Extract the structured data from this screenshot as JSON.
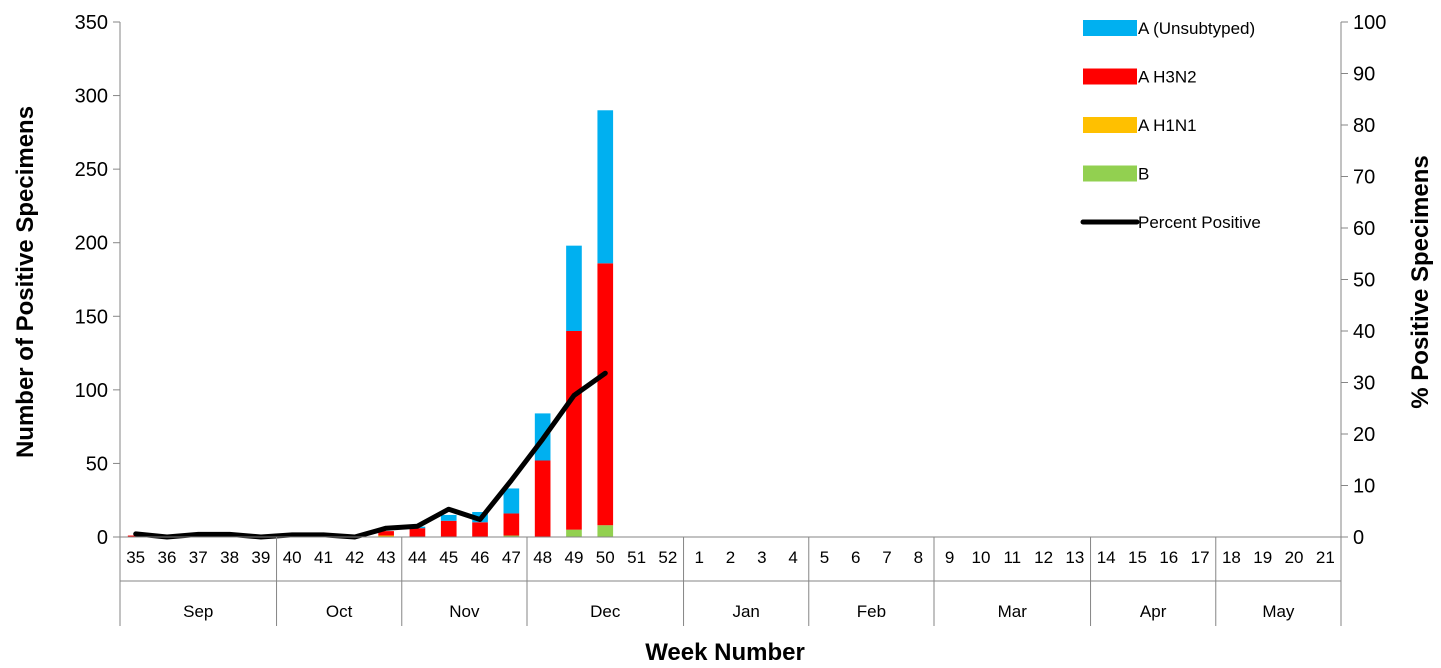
{
  "chart_data": {
    "type": "bar",
    "stacked": true,
    "xlabel": "Week Number",
    "ylabel": "Number of Positive Specimens",
    "y2label": "% Positive Specimens",
    "ylim": [
      0,
      350
    ],
    "yticks": [
      0,
      50,
      100,
      150,
      200,
      250,
      300,
      350
    ],
    "y2lim": [
      0,
      100
    ],
    "y2ticks": [
      0,
      10,
      20,
      30,
      40,
      50,
      60,
      70,
      80,
      90,
      100
    ],
    "grid": false,
    "legend_position": "top-right",
    "categories": [
      "35",
      "36",
      "37",
      "38",
      "39",
      "40",
      "41",
      "42",
      "43",
      "44",
      "45",
      "46",
      "47",
      "48",
      "49",
      "50",
      "51",
      "52",
      "1",
      "2",
      "3",
      "4",
      "5",
      "6",
      "7",
      "8",
      "9",
      "10",
      "11",
      "12",
      "13",
      "14",
      "15",
      "16",
      "17",
      "18",
      "19",
      "20",
      "21"
    ],
    "months": [
      {
        "label": "Sep",
        "span": 5
      },
      {
        "label": "Oct",
        "span": 4
      },
      {
        "label": "Nov",
        "span": 4
      },
      {
        "label": "Dec",
        "span": 5
      },
      {
        "label": "Jan",
        "span": 4
      },
      {
        "label": "Feb",
        "span": 4
      },
      {
        "label": "Mar",
        "span": 5
      },
      {
        "label": "Apr",
        "span": 4
      },
      {
        "label": "May",
        "span": 4
      }
    ],
    "series": [
      {
        "name": "B",
        "type": "bar",
        "color": "#92D050",
        "values": [
          0,
          0,
          0,
          0,
          0,
          0,
          0,
          0,
          0,
          0,
          0,
          0,
          1,
          0,
          5,
          8,
          null,
          null,
          null,
          null,
          null,
          null,
          null,
          null,
          null,
          null,
          null,
          null,
          null,
          null,
          null,
          null,
          null,
          null,
          null,
          null,
          null,
          null,
          null
        ]
      },
      {
        "name": "A H1N1",
        "type": "bar",
        "color": "#FFC000",
        "values": [
          0,
          0,
          0,
          0,
          0,
          0,
          0,
          0,
          1,
          0,
          0,
          0,
          0,
          0,
          0,
          0,
          null,
          null,
          null,
          null,
          null,
          null,
          null,
          null,
          null,
          null,
          null,
          null,
          null,
          null,
          null,
          null,
          null,
          null,
          null,
          null,
          null,
          null,
          null
        ]
      },
      {
        "name": "A H3N2",
        "type": "bar",
        "color": "#FF0000",
        "values": [
          1,
          0,
          0,
          0,
          0,
          0,
          0,
          0,
          3,
          6,
          11,
          10,
          15,
          52,
          135,
          178,
          null,
          null,
          null,
          null,
          null,
          null,
          null,
          null,
          null,
          null,
          null,
          null,
          null,
          null,
          null,
          null,
          null,
          null,
          null,
          null,
          null,
          null,
          null
        ]
      },
      {
        "name": "A (Unsubtyped)",
        "type": "bar",
        "color": "#00B0F0",
        "values": [
          0,
          0,
          0,
          0,
          0,
          0,
          0,
          0,
          0,
          1,
          4,
          7,
          17,
          32,
          58,
          104,
          null,
          null,
          null,
          null,
          null,
          null,
          null,
          null,
          null,
          null,
          null,
          null,
          null,
          null,
          null,
          null,
          null,
          null,
          null,
          null,
          null,
          null,
          null
        ]
      },
      {
        "name": "Percent Positive",
        "type": "line",
        "axis": "right",
        "color": "#000000",
        "values": [
          0.6,
          0,
          0.5,
          0.5,
          0,
          0.4,
          0.4,
          0,
          1.7,
          2.1,
          5.4,
          3.4,
          11,
          19,
          27.5,
          31.8,
          null,
          null,
          null,
          null,
          null,
          null,
          null,
          null,
          null,
          null,
          null,
          null,
          null,
          null,
          null,
          null,
          null,
          null,
          null,
          null,
          null,
          null,
          null
        ]
      }
    ],
    "legend": [
      {
        "label": "A (Unsubtyped)",
        "color": "#00B0F0",
        "kind": "bar"
      },
      {
        "label": "A H3N2",
        "color": "#FF0000",
        "kind": "bar"
      },
      {
        "label": "A H1N1",
        "color": "#FFC000",
        "kind": "bar"
      },
      {
        "label": "B",
        "color": "#92D050",
        "kind": "bar"
      },
      {
        "label": "Percent Positive",
        "color": "#000000",
        "kind": "line"
      }
    ]
  }
}
